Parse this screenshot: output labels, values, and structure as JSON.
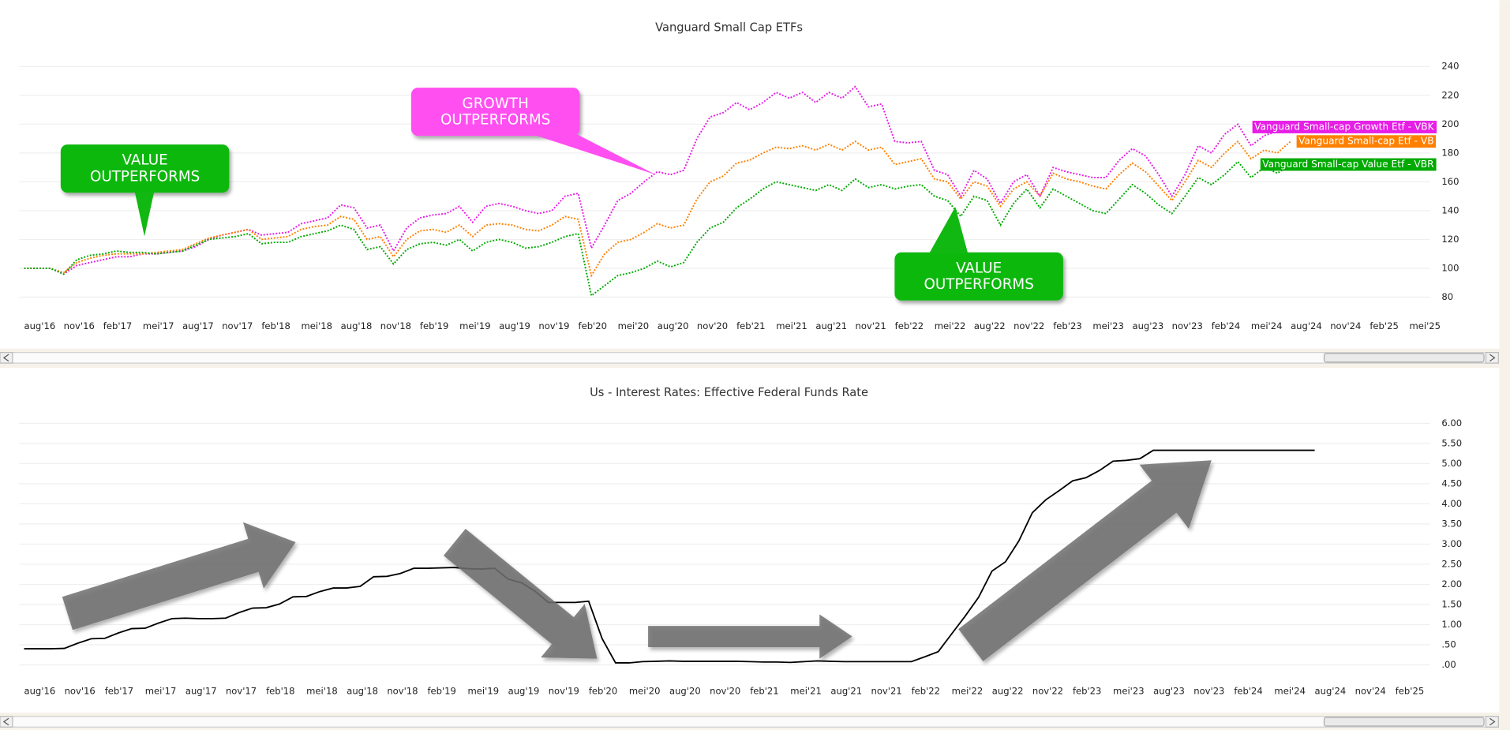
{
  "chart_data": [
    {
      "type": "line",
      "title": "Vanguard Small Cap ETFs",
      "line_style": "dotted",
      "grid": true,
      "end_labels": true,
      "categories": [
        "aug'16",
        null,
        null,
        "nov'16",
        null,
        null,
        "feb'17",
        null,
        null,
        "mei'17",
        null,
        null,
        "aug'17",
        null,
        null,
        "nov'17",
        null,
        null,
        "feb'18",
        null,
        null,
        "mei'18",
        null,
        null,
        "aug'18",
        null,
        null,
        "nov'18",
        null,
        null,
        "feb'19",
        null,
        null,
        "mei'19",
        null,
        null,
        "aug'19",
        null,
        null,
        "nov'19",
        null,
        null,
        "feb'20",
        null,
        null,
        "mei'20",
        null,
        null,
        "aug'20",
        null,
        null,
        "nov'20",
        null,
        null,
        "feb'21",
        null,
        null,
        "mei'21",
        null,
        null,
        "aug'21",
        null,
        null,
        "nov'21",
        null,
        null,
        "feb'22",
        null,
        null,
        "mei'22",
        null,
        null,
        "aug'22",
        null,
        null,
        "nov'22",
        null,
        null,
        "feb'23",
        null,
        null,
        "mei'23",
        null,
        null,
        "aug'23",
        null,
        null,
        "nov'23",
        null,
        null,
        "feb'24",
        null,
        null,
        "mei'24",
        null,
        null,
        "aug'24",
        null,
        null,
        "nov'24",
        null,
        null,
        "feb'25",
        null,
        null,
        "mei'25"
      ],
      "series": [
        {
          "name": "Vanguard Small-cap Growth Etf - VBK",
          "color": "#e61ee6",
          "values": [
            100,
            100,
            100,
            96,
            102,
            104,
            106,
            108,
            108,
            110,
            110,
            111,
            112,
            115,
            120,
            123,
            125,
            127,
            123,
            124,
            125,
            131,
            133,
            135,
            144,
            142,
            128,
            130,
            112,
            128,
            135,
            137,
            138,
            143,
            132,
            143,
            145,
            143,
            140,
            138,
            140,
            150,
            152,
            114,
            130,
            147,
            152,
            160,
            167,
            165,
            168,
            190,
            205,
            208,
            215,
            210,
            215,
            222,
            218,
            222,
            215,
            222,
            218,
            226,
            212,
            214,
            188,
            187,
            188,
            168,
            165,
            150,
            168,
            162,
            145,
            160,
            165,
            150,
            170,
            167,
            165,
            163,
            163,
            175,
            183,
            178,
            165,
            150,
            165,
            185,
            180,
            193,
            200,
            185,
            192,
            195,
            198,
            null,
            null,
            null,
            null,
            null,
            null,
            null,
            null,
            null
          ]
        },
        {
          "name": "Vanguard Small-cap Etf - VB",
          "color": "#ff8000",
          "values": [
            100,
            100,
            100,
            97,
            104,
            107,
            109,
            110,
            110,
            110,
            111,
            112,
            113,
            117,
            121,
            123,
            125,
            127,
            120,
            121,
            122,
            127,
            129,
            130,
            136,
            134,
            120,
            122,
            108,
            120,
            126,
            127,
            125,
            130,
            122,
            130,
            131,
            130,
            127,
            126,
            130,
            136,
            134,
            95,
            110,
            118,
            120,
            125,
            131,
            128,
            130,
            148,
            160,
            164,
            173,
            175,
            180,
            184,
            183,
            185,
            182,
            186,
            182,
            188,
            182,
            184,
            172,
            174,
            176,
            162,
            160,
            148,
            160,
            157,
            143,
            155,
            160,
            150,
            166,
            162,
            160,
            157,
            155,
            165,
            173,
            167,
            157,
            147,
            160,
            175,
            170,
            180,
            188,
            176,
            182,
            180,
            188,
            null,
            null,
            null,
            null,
            null,
            null,
            null,
            null,
            null
          ]
        },
        {
          "name": "Vanguard Small-cap Value Etf - VBR",
          "color": "#00aa00",
          "values": [
            100,
            100,
            100,
            96,
            106,
            109,
            110,
            112,
            111,
            111,
            110,
            111,
            112,
            116,
            120,
            121,
            122,
            124,
            117,
            118,
            118,
            122,
            124,
            126,
            130,
            127,
            113,
            115,
            103,
            113,
            117,
            118,
            116,
            120,
            112,
            118,
            120,
            118,
            114,
            115,
            118,
            122,
            124,
            81,
            88,
            95,
            97,
            100,
            105,
            101,
            104,
            118,
            128,
            132,
            142,
            148,
            155,
            160,
            158,
            156,
            154,
            158,
            154,
            162,
            156,
            158,
            155,
            157,
            158,
            150,
            147,
            136,
            150,
            147,
            130,
            145,
            155,
            142,
            155,
            150,
            145,
            140,
            138,
            148,
            158,
            152,
            144,
            138,
            150,
            163,
            158,
            165,
            174,
            163,
            170,
            166,
            172,
            null,
            null,
            null,
            null,
            null,
            null,
            null,
            null,
            null
          ]
        }
      ],
      "ylim": [
        69,
        254
      ],
      "yticks": [
        80,
        100,
        120,
        140,
        160,
        180,
        200,
        220,
        240
      ],
      "annotations": [
        "VALUE OUTPERFORMS",
        "GROWTH OUTPERFORMS",
        "VALUE OUTPERFORMS"
      ]
    },
    {
      "type": "line",
      "title": "Us - Interest Rates: Effective Federal Funds Rate",
      "line_style": "solid",
      "grid": true,
      "end_labels": false,
      "categories": [
        "aug'16",
        null,
        null,
        "nov'16",
        null,
        null,
        "feb'17",
        null,
        null,
        "mei'17",
        null,
        null,
        "aug'17",
        null,
        null,
        "nov'17",
        null,
        null,
        "feb'18",
        null,
        null,
        "mei'18",
        null,
        null,
        "aug'18",
        null,
        null,
        "nov'18",
        null,
        null,
        "feb'19",
        null,
        null,
        "mei'19",
        null,
        null,
        "aug'19",
        null,
        null,
        "nov'19",
        null,
        null,
        "feb'20",
        null,
        null,
        "mei'20",
        null,
        null,
        "aug'20",
        null,
        null,
        "nov'20",
        null,
        null,
        "feb'21",
        null,
        null,
        "mei'21",
        null,
        null,
        "aug'21",
        null,
        null,
        "nov'21",
        null,
        null,
        "feb'22",
        null,
        null,
        "mei'22",
        null,
        null,
        "aug'22",
        null,
        null,
        "nov'22",
        null,
        null,
        "feb'23",
        null,
        null,
        "mei'23",
        null,
        null,
        "aug'23",
        null,
        null,
        "nov'23",
        null,
        null,
        "feb'24",
        null,
        null,
        "mei'24",
        null,
        null,
        "aug'24",
        null,
        null,
        "nov'24",
        null,
        null,
        "feb'25"
      ],
      "series": [
        {
          "color": "#000000",
          "values": [
            0.4,
            0.4,
            0.4,
            0.41,
            0.54,
            0.65,
            0.66,
            0.79,
            0.9,
            0.91,
            1.04,
            1.15,
            1.16,
            1.15,
            1.15,
            1.16,
            1.3,
            1.41,
            1.42,
            1.51,
            1.69,
            1.7,
            1.82,
            1.91,
            1.91,
            1.95,
            2.19,
            2.2,
            2.27,
            2.4,
            2.4,
            2.41,
            2.42,
            2.39,
            2.38,
            2.4,
            2.13,
            2.04,
            1.83,
            1.55,
            1.55,
            1.55,
            1.58,
            0.65,
            0.05,
            0.05,
            0.08,
            0.09,
            0.1,
            0.09,
            0.09,
            0.09,
            0.09,
            0.09,
            0.08,
            0.07,
            0.07,
            0.06,
            0.08,
            0.1,
            0.09,
            0.08,
            0.08,
            0.08,
            0.08,
            0.08,
            0.08,
            0.2,
            0.33,
            0.77,
            1.21,
            1.68,
            2.33,
            2.56,
            3.08,
            3.78,
            4.1,
            4.33,
            4.57,
            4.65,
            4.83,
            5.06,
            5.08,
            5.12,
            5.33,
            5.33,
            5.33,
            5.33,
            5.33,
            5.33,
            5.33,
            5.33,
            5.33,
            5.33,
            5.33,
            5.33,
            5.33,
            null,
            null,
            null,
            null,
            null,
            null
          ]
        }
      ],
      "ylim": [
        -0.3,
        6.3
      ],
      "yticks": [
        {
          "value": 0,
          "label": ".00"
        },
        {
          "value": 0.5,
          "label": ".50"
        },
        {
          "value": 1,
          "label": "1.00"
        },
        {
          "value": 1.5,
          "label": "1.50"
        },
        {
          "value": 2,
          "label": "2.00"
        },
        {
          "value": 2.5,
          "label": "2.50"
        },
        {
          "value": 3,
          "label": "3.00"
        },
        {
          "value": 3.5,
          "label": "3.50"
        },
        {
          "value": 4,
          "label": "4.00"
        },
        {
          "value": 4.5,
          "label": "4.50"
        },
        {
          "value": 5,
          "label": "5.00"
        },
        {
          "value": 5.5,
          "label": "5.50"
        },
        {
          "value": 6,
          "label": "6.00"
        }
      ],
      "annotations": [
        "RATES UP",
        "RATES DOWN",
        "LOW RATES",
        "RATES UP"
      ]
    }
  ]
}
